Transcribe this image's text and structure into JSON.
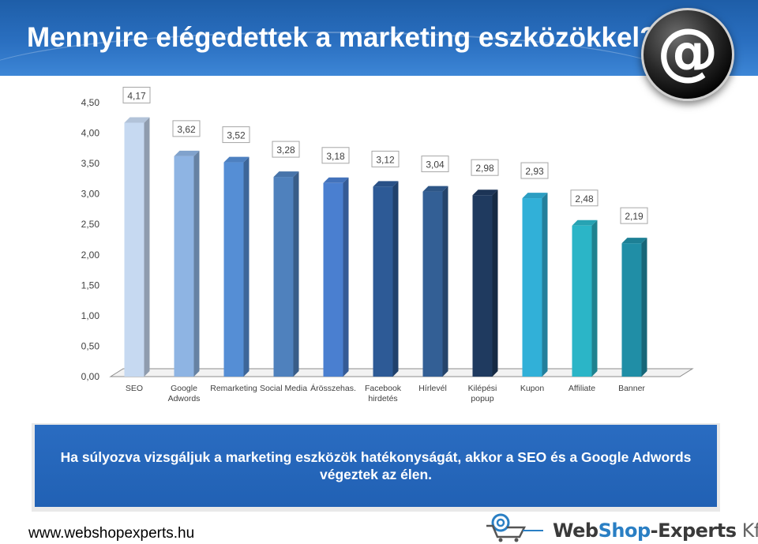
{
  "header": {
    "title": "Mennyire elégedettek a marketing eszközökkel?"
  },
  "chart_data": {
    "type": "bar",
    "categories": [
      "SEO",
      "Google Adwords",
      "Remarketing",
      "Social Media",
      "Árösszehas.",
      "Facebook hirdetés",
      "Hírlevél",
      "Kilépési popup",
      "Kupon",
      "Affiliate",
      "Banner"
    ],
    "values": [
      4.17,
      3.62,
      3.52,
      3.28,
      3.18,
      3.12,
      3.04,
      2.98,
      2.93,
      2.48,
      2.19
    ],
    "value_labels": [
      "4,17",
      "3,62",
      "3,52",
      "3,28",
      "3,18",
      "3,12",
      "3,04",
      "2,98",
      "2,93",
      "2,48",
      "2,19"
    ],
    "y_ticks": [
      "0,00",
      "0,50",
      "1,00",
      "1,50",
      "2,00",
      "2,50",
      "3,00",
      "3,50",
      "4,00",
      "4,50"
    ],
    "ylim": [
      0,
      4.5
    ],
    "grid": false,
    "legend": "none",
    "colors": [
      "#c6d9f1",
      "#8eb4e3",
      "#558ed5",
      "#4f81bd",
      "#4a7fd0",
      "#2d5a96",
      "#335f95",
      "#1f3a5f",
      "#31b0d8",
      "#2bb5c7",
      "#208ea6"
    ]
  },
  "banner": {
    "text": "Ha súlyozva vizsgáljuk a marketing eszközök hatékonyságát, akkor a SEO és a Google Adwords végeztek az élen."
  },
  "footer": {
    "url": "www.webshopexperts.hu",
    "brand_part1": "Web",
    "brand_part2": "Shop",
    "brand_part3": "-Experts",
    "brand_part4": " Kft."
  },
  "icons": {
    "logo": "at-sign-icon",
    "cart": "shopping-cart-icon"
  }
}
